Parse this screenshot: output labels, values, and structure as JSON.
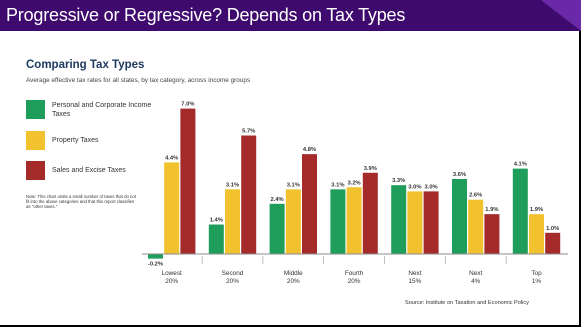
{
  "banner": {
    "title": "Progressive or Regressive? Depends on Tax Types"
  },
  "chart_data": {
    "type": "bar",
    "title": "Comparing Tax Types",
    "subtitle": "Average effective tax rates for all states, by tax category, across income groups",
    "categories": [
      [
        "Lowest",
        "20%"
      ],
      [
        "Second",
        "20%"
      ],
      [
        "Middle",
        "20%"
      ],
      [
        "Fourth",
        "20%"
      ],
      [
        "Next",
        "15%"
      ],
      [
        "Next",
        "4%"
      ],
      [
        "Top",
        "1%"
      ]
    ],
    "series": [
      {
        "name": "Personal and Corporate Income Taxes",
        "color": "#1e9e5a",
        "values": [
          -0.2,
          1.4,
          2.4,
          3.1,
          3.3,
          3.6,
          4.1
        ],
        "labels": [
          "-0.2%",
          "1.4%",
          "2.4%",
          "3.1%",
          "3.3%",
          "3.6%",
          "4.1%"
        ]
      },
      {
        "name": "Property Taxes",
        "color": "#f2c12e",
        "values": [
          4.4,
          3.1,
          3.1,
          3.2,
          3.0,
          2.6,
          1.9
        ],
        "labels": [
          "4.4%",
          "3.1%",
          "3.1%",
          "3.2%",
          "3.0%",
          "2.6%",
          "1.9%"
        ]
      },
      {
        "name": "Sales and Excise Taxes",
        "color": "#a52a2a",
        "values": [
          7.0,
          5.7,
          4.8,
          3.9,
          3.0,
          1.9,
          1.0
        ],
        "labels": [
          "7.0%",
          "5.7%",
          "4.8%",
          "3.9%",
          "3.0%",
          "1.9%",
          "1.0%"
        ]
      }
    ],
    "ylim": [
      -0.2,
      7.0
    ],
    "grid": false,
    "legend_position": "left",
    "note": "Note: This chart omits a small number of taxes that do not fit into the above categories and that this report classifies as \"other taxes.\"",
    "source": "Source: Institute on Taxation and Economic Policy"
  }
}
